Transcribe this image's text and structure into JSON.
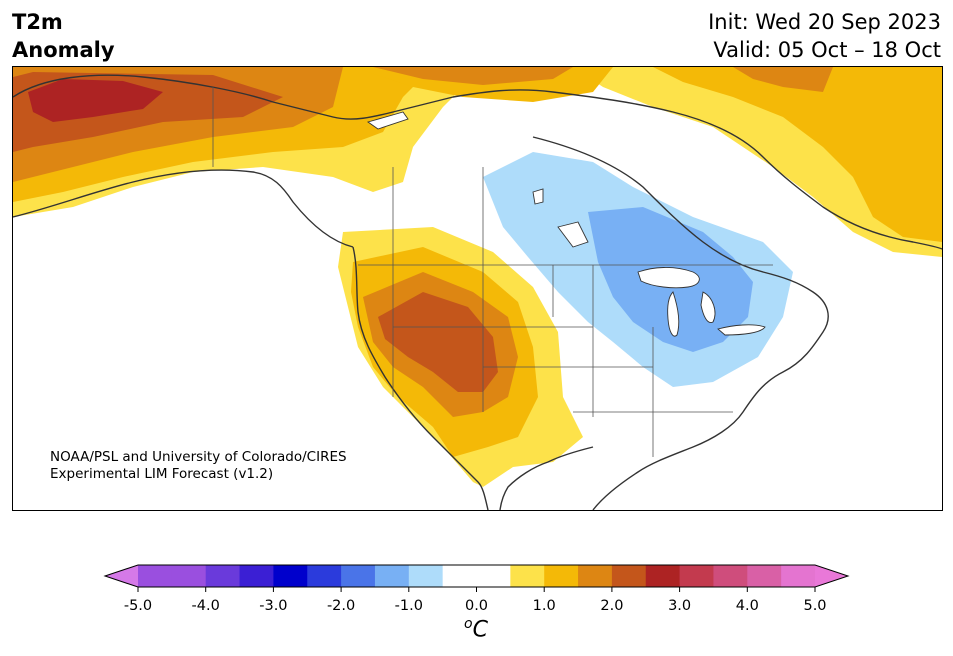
{
  "title": {
    "variable_line1": "T2m",
    "variable_line2": "Anomaly",
    "init": "Init: Wed 20 Sep 2023",
    "valid": "Valid: 05 Oct – 18 Oct"
  },
  "credit": {
    "line1": "NOAA/PSL and University of Colorado/CIRES",
    "line2": "Experimental LIM Forecast (v1.2)"
  },
  "colorbar": {
    "units_prefix": "o",
    "units_main": "C",
    "ticks": [
      "-5.0",
      "-4.0",
      "-3.0",
      "-2.0",
      "-1.0",
      "0.0",
      "1.0",
      "2.0",
      "3.0",
      "4.0",
      "5.0"
    ],
    "tick_values": [
      -5,
      -4,
      -3,
      -2,
      -1,
      0,
      1,
      2,
      3,
      4,
      5
    ],
    "bins": [
      {
        "from": -5.0,
        "to": -4.5,
        "color": "#9a4fdf"
      },
      {
        "from": -4.5,
        "to": -4.0,
        "color": "#9a4fdf"
      },
      {
        "from": -4.0,
        "to": -3.5,
        "color": "#6a3adb"
      },
      {
        "from": -3.5,
        "to": -3.0,
        "color": "#3b1fd4"
      },
      {
        "from": -3.0,
        "to": -2.5,
        "color": "#0000cc"
      },
      {
        "from": -2.5,
        "to": -2.0,
        "color": "#2b3bdc"
      },
      {
        "from": -2.0,
        "to": -1.5,
        "color": "#4a74e8"
      },
      {
        "from": -1.5,
        "to": -1.0,
        "color": "#78b0f4"
      },
      {
        "from": -1.0,
        "to": -0.5,
        "color": "#aedcfa"
      },
      {
        "from": -0.5,
        "to": 0.5,
        "color": "#ffffff"
      },
      {
        "from": 0.5,
        "to": 1.0,
        "color": "#fde24a"
      },
      {
        "from": 1.0,
        "to": 1.5,
        "color": "#f4b907"
      },
      {
        "from": 1.5,
        "to": 2.0,
        "color": "#dd8613"
      },
      {
        "from": 2.0,
        "to": 2.5,
        "color": "#c4561b"
      },
      {
        "from": 2.5,
        "to": 3.0,
        "color": "#ad2323"
      },
      {
        "from": 3.0,
        "to": 3.5,
        "color": "#c33a4e"
      },
      {
        "from": 3.5,
        "to": 4.0,
        "color": "#cf4d7c"
      },
      {
        "from": 4.0,
        "to": 4.5,
        "color": "#d960a6"
      },
      {
        "from": 4.5,
        "to": 5.0,
        "color": "#e474d0"
      }
    ],
    "extend_low_color": "#d579e8",
    "extend_high_color": "#e978d8"
  }
}
